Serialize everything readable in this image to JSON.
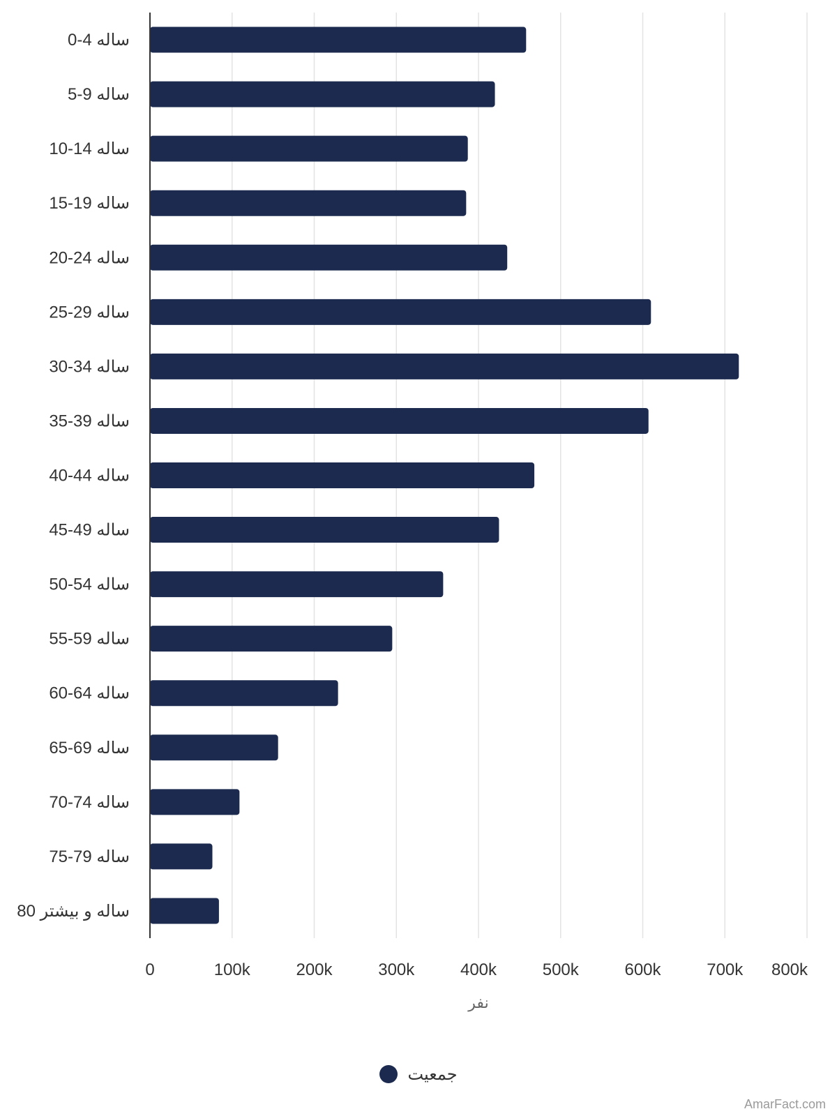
{
  "chart_data": {
    "type": "bar",
    "orientation": "horizontal",
    "categories": [
      "0-4 ساله",
      "5-9 ساله",
      "10-14 ساله",
      "15-19 ساله",
      "20-24 ساله",
      "25-29 ساله",
      "30-34 ساله",
      "35-39 ساله",
      "40-44 ساله",
      "45-49 ساله",
      "50-54 ساله",
      "55-59 ساله",
      "60-64 ساله",
      "65-69 ساله",
      "70-74 ساله",
      "75-79 ساله",
      "80 ساله و بیشتر"
    ],
    "series": [
      {
        "name": "جمعیت",
        "values": [
          458000,
          420000,
          387000,
          385000,
          435000,
          610000,
          717000,
          607000,
          468000,
          425000,
          357000,
          295000,
          229000,
          156000,
          109000,
          76000,
          84000
        ]
      }
    ],
    "xlabel": "نفر",
    "ylabel": "",
    "xlim": [
      0,
      800000
    ],
    "ticks": [
      "0",
      "100k",
      "200k",
      "300k",
      "400k",
      "500k",
      "600k",
      "700k",
      "800k"
    ],
    "grid": true,
    "legend_position": "bottom-center",
    "bar_color": "#1b2a4e"
  },
  "credit": "AmarFact.com"
}
